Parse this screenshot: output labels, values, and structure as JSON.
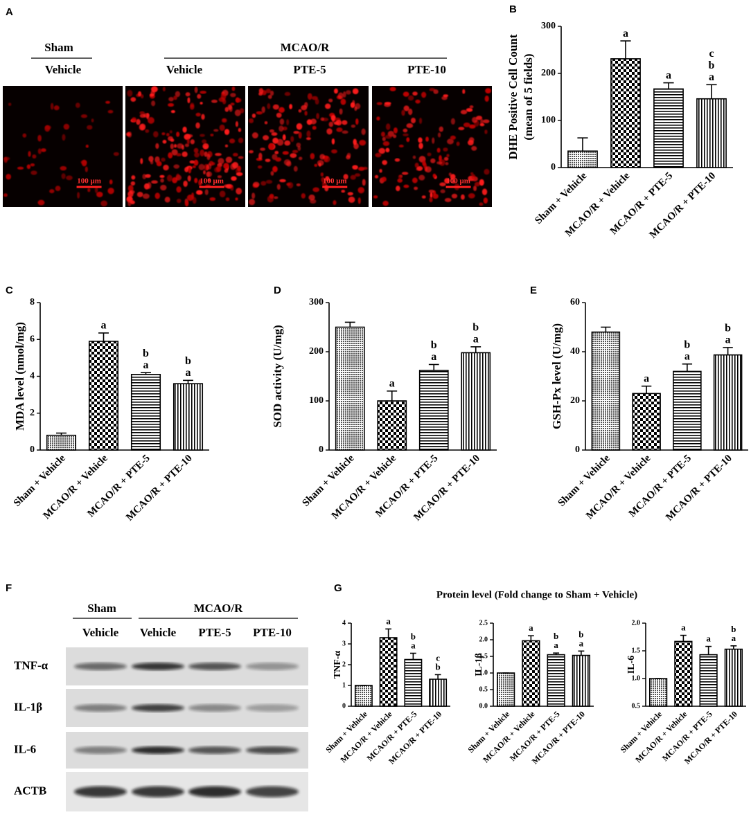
{
  "panel_a": {
    "label": "A",
    "groups": [
      {
        "name": "Sham",
        "columns": [
          "Vehicle"
        ]
      },
      {
        "name": "MCAO/R",
        "columns": [
          "Vehicle",
          "PTE-5",
          "PTE-10"
        ]
      }
    ],
    "scale_bars": [
      "100 μm",
      "100 μm",
      "100 μm",
      "100 μm"
    ]
  },
  "panel_f": {
    "label": "F",
    "groups": [
      {
        "name": "Sham",
        "columns": [
          "Vehicle"
        ]
      },
      {
        "name": "MCAO/R",
        "columns": [
          "Vehicle",
          "PTE-5",
          "PTE-10"
        ]
      }
    ],
    "rows": [
      "TNF-α",
      "IL-1β",
      "IL-6",
      "ACTB"
    ]
  },
  "panel_g": {
    "label": "G",
    "title": "Protein level (Fold change to Sham + Vehicle)"
  },
  "chart_data": [
    {
      "type": "bar",
      "panel": "B",
      "ylabel": [
        "DHE Positive Cell Count",
        "(mean of 5 fields)"
      ],
      "categories": [
        "Sham + Vehicle",
        "MCAO/R + Vehicle",
        "MCAO/R + PTE-5",
        "MCAO/R + PTE-10"
      ],
      "values": [
        35,
        231,
        167,
        146
      ],
      "errors": [
        28,
        38,
        13,
        30
      ],
      "annotations": [
        [],
        [
          "a"
        ],
        [
          "a"
        ],
        [
          "c",
          "b",
          "a"
        ]
      ],
      "bar_patterns": [
        "dots",
        "checker",
        "hlines",
        "vlines"
      ],
      "ylim": [
        0,
        300
      ],
      "yticks": [
        0,
        100,
        200,
        300
      ]
    },
    {
      "type": "bar",
      "panel": "C",
      "ylabel": [
        "MDA level (nmol/mg)"
      ],
      "categories": [
        "Sham + Vehicle",
        "MCAO/R + Vehicle",
        "MCAO/R + PTE-5",
        "MCAO/R + PTE-10"
      ],
      "values": [
        0.8,
        5.9,
        4.1,
        3.6
      ],
      "errors": [
        0.12,
        0.45,
        0.1,
        0.18
      ],
      "annotations": [
        [],
        [
          "a"
        ],
        [
          "b",
          "a"
        ],
        [
          "b",
          "a"
        ]
      ],
      "bar_patterns": [
        "dots",
        "checker",
        "hlines",
        "vlines"
      ],
      "ylim": [
        0,
        8
      ],
      "yticks": [
        0,
        2,
        4,
        6,
        8
      ]
    },
    {
      "type": "bar",
      "panel": "D",
      "ylabel": [
        "SOD activity (U/mg)"
      ],
      "categories": [
        "Sham + Vehicle",
        "MCAO/R + Vehicle",
        "MCAO/R + PTE-5",
        "MCAO/R + PTE-10"
      ],
      "values": [
        250,
        100,
        162,
        198
      ],
      "errors": [
        10,
        20,
        12,
        12
      ],
      "annotations": [
        [],
        [
          "a"
        ],
        [
          "b",
          "a"
        ],
        [
          "b",
          "a"
        ]
      ],
      "bar_patterns": [
        "dots",
        "checker",
        "hlines",
        "vlines"
      ],
      "ylim": [
        0,
        300
      ],
      "yticks": [
        0,
        100,
        200,
        300
      ]
    },
    {
      "type": "bar",
      "panel": "E",
      "ylabel": [
        "GSH-Px level (U/mg)"
      ],
      "categories": [
        "Sham + Vehicle",
        "MCAO/R + Vehicle",
        "MCAO/R + PTE-5",
        "MCAO/R + PTE-10"
      ],
      "values": [
        48,
        23,
        32,
        38.7
      ],
      "errors": [
        2,
        3,
        3,
        3
      ],
      "annotations": [
        [],
        [
          "a"
        ],
        [
          "b",
          "a"
        ],
        [
          "b",
          "a"
        ]
      ],
      "bar_patterns": [
        "dots",
        "checker",
        "hlines",
        "vlines"
      ],
      "ylim": [
        0,
        60
      ],
      "yticks": [
        0,
        20,
        40,
        60
      ]
    },
    {
      "type": "bar",
      "ylabel": [
        "TNF-α"
      ],
      "categories": [
        "Sham + Vehicle",
        "MCAO/R + Vehicle",
        "MCAO/R + PTE-5",
        "MCAO/R + PTE-10"
      ],
      "values": [
        1,
        3.3,
        2.25,
        1.3
      ],
      "errors": [
        0,
        0.42,
        0.3,
        0.22
      ],
      "annotations": [
        [],
        [
          "a"
        ],
        [
          "b",
          "a"
        ],
        [
          "c",
          "b"
        ]
      ],
      "bar_patterns": [
        "dots",
        "checker",
        "hlines",
        "vlines"
      ],
      "ylim": [
        0,
        4
      ],
      "yticks": [
        0,
        1,
        2,
        3,
        4
      ]
    },
    {
      "type": "bar",
      "ylabel": [
        "IL-1β"
      ],
      "categories": [
        "Sham + Vehicle",
        "MCAO/R + Vehicle",
        "MCAO/R + PTE-5",
        "MCAO/R + PTE-10"
      ],
      "values": [
        1.0,
        1.97,
        1.55,
        1.53
      ],
      "errors": [
        0,
        0.15,
        0.05,
        0.13
      ],
      "annotations": [
        [],
        [
          "a"
        ],
        [
          "b",
          "a"
        ],
        [
          "b",
          "a"
        ]
      ],
      "bar_patterns": [
        "dots",
        "checker",
        "hlines",
        "vlines"
      ],
      "ylim": [
        0,
        2.5
      ],
      "yticks": [
        {
          "value": 0,
          "label": "0.0"
        },
        0.5,
        {
          "value": 1,
          "label": "1.0"
        },
        1.5,
        {
          "value": 2,
          "label": "2.0"
        },
        2.5
      ]
    },
    {
      "type": "bar",
      "ylabel": [
        "IL-6"
      ],
      "categories": [
        "Sham + Vehicle",
        "MCAO/R + Vehicle",
        "MCAO/R + PTE-5",
        "MCAO/R + PTE-10"
      ],
      "values": [
        1.0,
        1.67,
        1.43,
        1.53
      ],
      "errors": [
        0,
        0.11,
        0.15,
        0.06
      ],
      "annotations": [
        [],
        [
          "a"
        ],
        [
          "a"
        ],
        [
          "b",
          "a"
        ]
      ],
      "bar_patterns": [
        "dots",
        "checker",
        "hlines",
        "vlines"
      ],
      "ylim": [
        0.5,
        2.0
      ],
      "yticks": [
        0.5,
        {
          "value": 1,
          "label": "1.0"
        },
        1.5,
        {
          "value": 2,
          "label": "2.0"
        }
      ]
    }
  ]
}
